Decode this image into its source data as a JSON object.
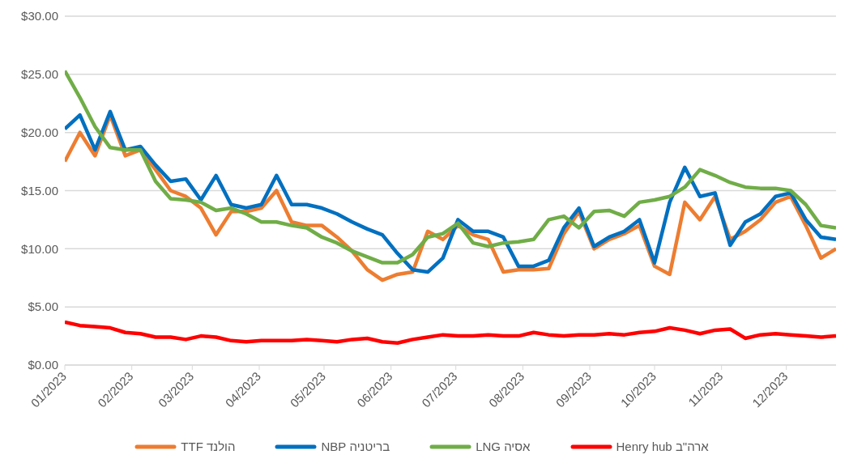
{
  "chart_data": {
    "type": "line",
    "x": [
      "2023-01-01",
      "2023-01-08",
      "2023-01-15",
      "2023-01-22",
      "2023-01-29",
      "2023-02-05",
      "2023-02-12",
      "2023-02-19",
      "2023-02-26",
      "2023-03-05",
      "2023-03-12",
      "2023-03-19",
      "2023-03-26",
      "2023-04-02",
      "2023-04-09",
      "2023-04-16",
      "2023-04-23",
      "2023-04-30",
      "2023-05-07",
      "2023-05-14",
      "2023-05-21",
      "2023-05-28",
      "2023-06-04",
      "2023-06-11",
      "2023-06-18",
      "2023-06-25",
      "2023-07-02",
      "2023-07-09",
      "2023-07-16",
      "2023-07-23",
      "2023-07-30",
      "2023-08-06",
      "2023-08-13",
      "2023-08-20",
      "2023-08-27",
      "2023-09-03",
      "2023-09-10",
      "2023-09-17",
      "2023-09-24",
      "2023-10-01",
      "2023-10-08",
      "2023-10-15",
      "2023-10-22",
      "2023-10-29",
      "2023-11-05",
      "2023-11-12",
      "2023-11-19",
      "2023-11-26",
      "2023-12-03",
      "2023-12-10",
      "2023-12-17",
      "2023-12-24"
    ],
    "series": [
      {
        "name": "הולנד TTF",
        "color": "#ed7d31",
        "values": [
          17.5,
          20.0,
          18.0,
          21.5,
          18.0,
          18.5,
          16.8,
          15.0,
          14.5,
          13.5,
          11.2,
          13.2,
          13.2,
          13.5,
          15.0,
          12.3,
          12.0,
          12.0,
          11.0,
          9.8,
          8.2,
          7.3,
          7.8,
          8.0,
          11.5,
          10.8,
          12.0,
          11.2,
          10.8,
          8.0,
          8.2,
          8.2,
          8.3,
          11.3,
          13.2,
          10.0,
          10.8,
          11.3,
          12.0,
          8.5,
          7.8,
          14.0,
          12.5,
          14.5,
          10.8,
          11.5,
          12.5,
          14.0,
          14.5,
          12.0,
          9.2,
          10.0
        ]
      },
      {
        "name": "בריטניה NBP",
        "color": "#0070c0",
        "values": [
          20.3,
          21.5,
          18.5,
          21.8,
          18.5,
          18.8,
          17.2,
          15.8,
          16.0,
          14.2,
          16.3,
          13.8,
          13.5,
          13.8,
          16.3,
          13.8,
          13.8,
          13.5,
          13.0,
          12.3,
          11.7,
          11.2,
          9.6,
          8.2,
          8.0,
          9.2,
          12.5,
          11.5,
          11.5,
          11.0,
          8.5,
          8.5,
          9.0,
          11.8,
          13.5,
          10.2,
          11.0,
          11.5,
          12.5,
          8.8,
          14.0,
          17.0,
          14.5,
          14.8,
          10.3,
          12.3,
          13.0,
          14.5,
          14.8,
          12.5,
          11.0,
          10.8
        ]
      },
      {
        "name": "אסיה LNG",
        "color": "#70ad47",
        "values": [
          25.3,
          23.0,
          20.5,
          18.7,
          18.5,
          18.5,
          15.8,
          14.3,
          14.2,
          14.0,
          13.3,
          13.5,
          13.0,
          12.3,
          12.3,
          12.0,
          11.8,
          11.0,
          10.5,
          9.8,
          9.3,
          8.8,
          8.8,
          9.5,
          11.0,
          11.3,
          12.2,
          10.5,
          10.2,
          10.5,
          10.6,
          10.8,
          12.5,
          12.8,
          11.8,
          13.2,
          13.3,
          12.8,
          14.0,
          14.2,
          14.5,
          15.3,
          16.8,
          16.3,
          15.7,
          15.3,
          15.2,
          15.2,
          15.0,
          13.8,
          12.0,
          11.8
        ]
      },
      {
        "name": "ארה\"ב Henry hub",
        "color": "#ff0000",
        "values": [
          3.7,
          3.4,
          3.3,
          3.2,
          2.8,
          2.7,
          2.4,
          2.4,
          2.2,
          2.5,
          2.4,
          2.1,
          2.0,
          2.1,
          2.1,
          2.1,
          2.2,
          2.1,
          2.0,
          2.2,
          2.3,
          2.0,
          1.9,
          2.2,
          2.4,
          2.6,
          2.5,
          2.5,
          2.6,
          2.5,
          2.5,
          2.8,
          2.6,
          2.5,
          2.6,
          2.6,
          2.7,
          2.6,
          2.8,
          2.9,
          3.2,
          3.0,
          2.7,
          3.0,
          3.1,
          2.3,
          2.6,
          2.7,
          2.6,
          2.5,
          2.4,
          2.5
        ]
      }
    ],
    "xlim": [
      "2023-01-01",
      "2023-12-24"
    ],
    "xticks": [
      {
        "value": "2023-01-01",
        "label": "01/2023"
      },
      {
        "value": "2023-02-01",
        "label": "02/2023"
      },
      {
        "value": "2023-03-01",
        "label": "03/2023"
      },
      {
        "value": "2023-04-01",
        "label": "04/2023"
      },
      {
        "value": "2023-05-01",
        "label": "05/2023"
      },
      {
        "value": "2023-06-01",
        "label": "06/2023"
      },
      {
        "value": "2023-07-01",
        "label": "07/2023"
      },
      {
        "value": "2023-08-01",
        "label": "08/2023"
      },
      {
        "value": "2023-09-01",
        "label": "09/2023"
      },
      {
        "value": "2023-10-01",
        "label": "10/2023"
      },
      {
        "value": "2023-11-01",
        "label": "11/2023"
      },
      {
        "value": "2023-12-01",
        "label": "12/2023"
      }
    ],
    "ylim": [
      0,
      30
    ],
    "yticks": [
      {
        "value": 0,
        "label": "$0.00"
      },
      {
        "value": 5,
        "label": "$5.00"
      },
      {
        "value": 10,
        "label": "$10.00"
      },
      {
        "value": 15,
        "label": "$15.00"
      },
      {
        "value": 20,
        "label": "$20.00"
      },
      {
        "value": 25,
        "label": "$25.00"
      },
      {
        "value": 30,
        "label": "$30.00"
      }
    ],
    "grid": "y",
    "legend": "bottom",
    "marker": "none",
    "line_style": "solid"
  }
}
